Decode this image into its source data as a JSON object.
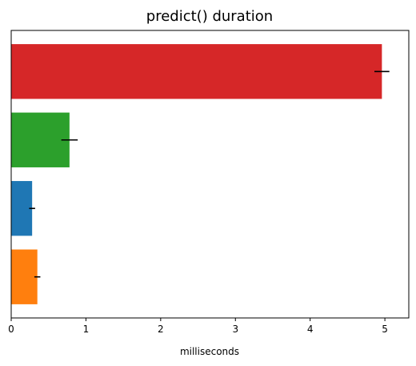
{
  "chart_data": {
    "type": "bar",
    "orientation": "horizontal",
    "title": "predict() duration",
    "xlabel": "milliseconds",
    "ylabel": "",
    "xlim": [
      0,
      5.32
    ],
    "x_ticks": [
      "0",
      "1",
      "2",
      "3",
      "4",
      "5"
    ],
    "y_tick_labels": "none",
    "grid": false,
    "legend": "none",
    "bars": [
      {
        "value": 4.96,
        "error": 0.1,
        "color": "#d62728"
      },
      {
        "value": 0.78,
        "error": 0.11,
        "color": "#2ca02c"
      },
      {
        "value": 0.28,
        "error": 0.04,
        "color": "#1f77b4"
      },
      {
        "value": 0.35,
        "error": 0.04,
        "color": "#ff7f0e"
      }
    ]
  }
}
